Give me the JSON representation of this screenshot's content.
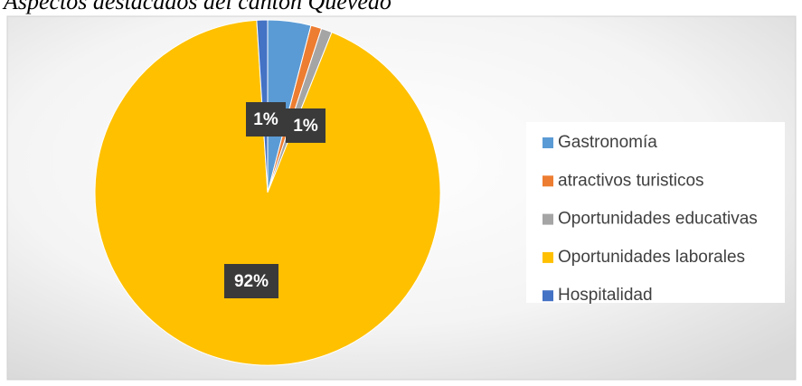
{
  "chart_data": {
    "type": "pie",
    "title": "Aspectos destacados del cantón Quevedo",
    "categories": [
      "Gastronomía",
      "atractivos turisticos",
      "Oportunidades educativas",
      "Oportunidades laborales",
      "Hospitalidad"
    ],
    "values": [
      4,
      1,
      1,
      92,
      1
    ],
    "value_labels": [
      null,
      "1%",
      "1%",
      "92%",
      null
    ],
    "colors": [
      "#5b9bd5",
      "#ed7d31",
      "#a5a5a5",
      "#ffc000",
      "#4472c4"
    ],
    "legend": "right"
  }
}
